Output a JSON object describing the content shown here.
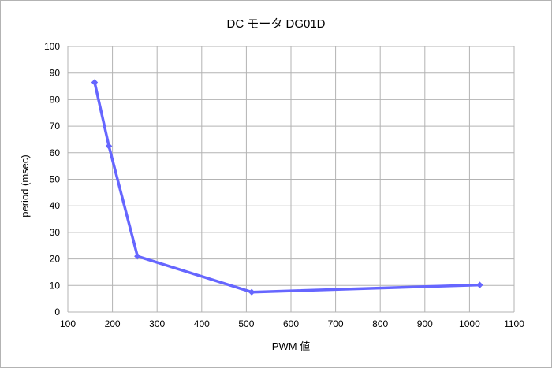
{
  "chart_data": {
    "type": "line",
    "title": "DC モータ  DG01D",
    "xlabel": "PWM 値",
    "ylabel": "period  (msec)",
    "xlim": [
      100,
      1100
    ],
    "ylim": [
      0,
      100
    ],
    "x_ticks": [
      100,
      200,
      300,
      400,
      500,
      600,
      700,
      800,
      900,
      1000,
      1100
    ],
    "y_ticks": [
      0,
      10,
      20,
      30,
      40,
      50,
      60,
      70,
      80,
      90,
      100
    ],
    "grid": true,
    "legend": "none",
    "series": [
      {
        "color": "#6666ff",
        "marker": "diamond",
        "x": [
          160,
          192,
          256,
          512,
          1023
        ],
        "y": [
          86.5,
          62.5,
          21,
          7.5,
          10.2
        ]
      }
    ]
  }
}
